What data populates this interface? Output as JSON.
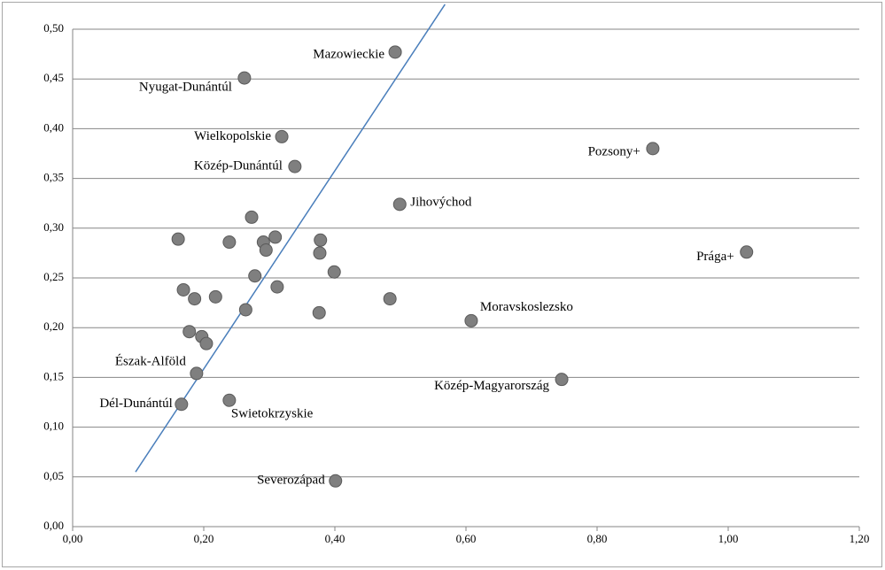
{
  "chart_data": {
    "type": "scatter",
    "x": [
      0.492,
      0.262,
      0.319,
      0.339,
      0.885,
      0.499,
      1.028,
      0.608,
      0.746,
      0.189,
      0.166,
      0.239,
      0.401,
      0.161,
      0.273,
      0.239,
      0.291,
      0.309,
      0.295,
      0.378,
      0.377,
      0.278,
      0.312,
      0.399,
      0.169,
      0.186,
      0.218,
      0.264,
      0.376,
      0.484,
      0.178,
      0.197,
      0.204
    ],
    "values": [
      0.477,
      0.451,
      0.392,
      0.362,
      0.38,
      0.324,
      0.276,
      0.207,
      0.148,
      0.154,
      0.123,
      0.127,
      0.046,
      0.289,
      0.311,
      0.286,
      0.286,
      0.291,
      0.278,
      0.288,
      0.275,
      0.252,
      0.241,
      0.256,
      0.238,
      0.229,
      0.231,
      0.218,
      0.215,
      0.229,
      0.196,
      0.191,
      0.184
    ],
    "labels": [
      "Mazowieckie",
      "Nyugat-Dunántúl",
      "Wielkopolskie",
      "Közép-Dunántúl",
      "Pozsony+",
      "Jihovýchod",
      "Prága+",
      "Moravskoslezsko",
      "Közép-Magyarország",
      "Észak-Alföld",
      "Dél-Dunántúl",
      "Swietokrzyskie",
      "Severozápad",
      null,
      null,
      null,
      null,
      null,
      null,
      null,
      null,
      null,
      null,
      null,
      null,
      null,
      null,
      null,
      null,
      null,
      null,
      null,
      null
    ],
    "color": "#7f7f7f",
    "trendline": {
      "x": [
        0.096,
        0.568
      ],
      "y": [
        0.055,
        0.525
      ],
      "color": "#4a7ebb"
    },
    "xlim": [
      0,
      1.2
    ],
    "xticks": [
      {
        "value": 0,
        "label": "0,00"
      },
      {
        "value": 0.2,
        "label": "0,20"
      },
      {
        "value": 0.4,
        "label": "0,40"
      },
      {
        "value": 0.6,
        "label": "0,60"
      },
      {
        "value": 0.8,
        "label": "0,80"
      },
      {
        "value": 1.0,
        "label": "1,00"
      },
      {
        "value": 1.2,
        "label": "1,20"
      }
    ],
    "ylim": [
      0,
      0.5
    ],
    "yticks": [
      {
        "value": 0,
        "label": "0,00"
      },
      {
        "value": 0.05,
        "label": "0,05"
      },
      {
        "value": 0.1,
        "label": "0,10"
      },
      {
        "value": 0.15,
        "label": "0,15"
      },
      {
        "value": 0.2,
        "label": "0,20"
      },
      {
        "value": 0.25,
        "label": "0,25"
      },
      {
        "value": 0.3,
        "label": "0,30"
      },
      {
        "value": 0.35,
        "label": "0,35"
      },
      {
        "value": 0.4,
        "label": "0,40"
      },
      {
        "value": 0.45,
        "label": "0,45"
      },
      {
        "value": 0.5,
        "label": "0,50"
      }
    ],
    "grid": true
  }
}
